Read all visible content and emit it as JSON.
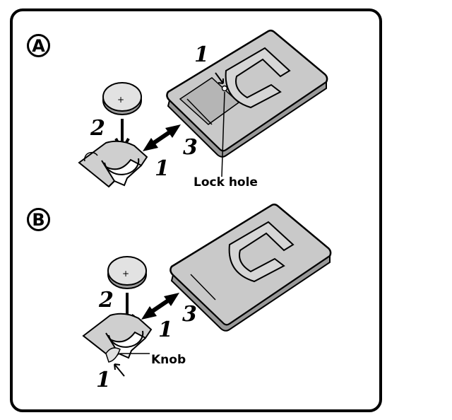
{
  "panels": {
    "a": {
      "label": "A",
      "steps": {
        "remote_release": "1",
        "insert_battery": "2",
        "slide_in": "3",
        "pull_holder": "1"
      },
      "callout": "Lock hole"
    },
    "b": {
      "label": "B",
      "steps": {
        "insert_battery": "2",
        "slide_in": "3",
        "pull_holder": "1",
        "press_knob": "1"
      },
      "callout": "Knob"
    }
  },
  "battery_mark": "+",
  "colors": {
    "line": "#000000",
    "remote_fill": "#c9c9c9",
    "holder_fill": "#cfcfcf",
    "battery_fill": "#e2e2e2"
  }
}
